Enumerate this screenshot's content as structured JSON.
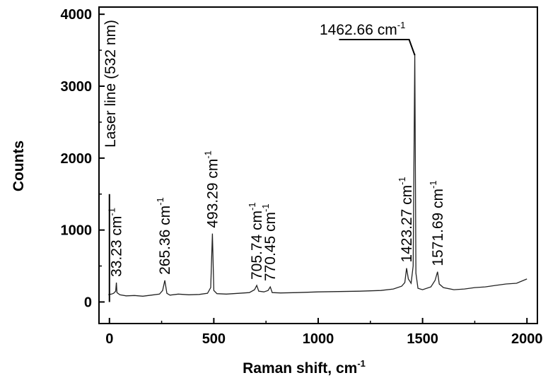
{
  "chart_data": {
    "type": "line",
    "title": "",
    "xlabel": "Raman shift, cm",
    "xlabel_sup": "-1",
    "ylabel": "Counts",
    "xlim": [
      -50,
      2050
    ],
    "ylim": [
      -300,
      4100
    ],
    "x_ticks": [
      0,
      500,
      1000,
      1500,
      2000
    ],
    "x_tick_labels": [
      "0",
      "500",
      "1000",
      "1500",
      "2000"
    ],
    "y_ticks": [
      0,
      1000,
      2000,
      3000,
      4000
    ],
    "y_tick_labels": [
      "0",
      "1000",
      "2000",
      "3000",
      "4000"
    ],
    "grid": false,
    "legend": "none",
    "series": [
      {
        "x": [
          -5,
          0,
          10,
          20,
          30,
          33.23,
          36,
          50,
          80,
          120,
          160,
          200,
          240,
          255,
          265.36,
          275,
          290,
          330,
          380,
          430,
          470,
          485,
          493.29,
          500,
          515,
          560,
          620,
          670,
          695,
          705.74,
          715,
          740,
          760,
          770.45,
          780,
          820,
          900,
          1000,
          1100,
          1200,
          1300,
          1360,
          1400,
          1415,
          1423.27,
          1432,
          1445,
          1455,
          1462.66,
          1468,
          1478,
          1500,
          1540,
          1560,
          1571.69,
          1580,
          1600,
          1650,
          1700,
          1750,
          1800,
          1850,
          1900,
          1950,
          2000
        ],
        "values": [
          100,
          105,
          110,
          120,
          150,
          270,
          130,
          100,
          85,
          90,
          80,
          95,
          110,
          160,
          300,
          120,
          95,
          110,
          100,
          105,
          120,
          200,
          950,
          160,
          115,
          110,
          120,
          130,
          170,
          230,
          150,
          140,
          160,
          210,
          130,
          125,
          130,
          140,
          145,
          150,
          160,
          180,
          220,
          270,
          470,
          320,
          260,
          500,
          3450,
          400,
          190,
          170,
          210,
          300,
          420,
          250,
          200,
          170,
          180,
          200,
          210,
          230,
          250,
          260,
          320
        ]
      }
    ],
    "annotations": [
      {
        "text": "Laser line (532 nm)",
        "x": 0,
        "y": 1500
      },
      {
        "text": "33.23 cm",
        "sup": "-1",
        "x": 33.23,
        "y": 270
      },
      {
        "text": "265.36 cm",
        "sup": "-1",
        "x": 265.36,
        "y": 300
      },
      {
        "text": "493.29 cm",
        "sup": "-1",
        "x": 493.29,
        "y": 950
      },
      {
        "text": "705.74 cm",
        "sup": "-1",
        "x": 705.74,
        "y": 230
      },
      {
        "text": "770.45 cm",
        "sup": "-1",
        "x": 770.45,
        "y": 210
      },
      {
        "text": "1423.27 cm",
        "sup": "-1",
        "x": 1423.27,
        "y": 470
      },
      {
        "text": "1571.69 cm",
        "sup": "-1",
        "x": 1571.69,
        "y": 420
      },
      {
        "text": "1462.66 cm",
        "sup": "-1",
        "x": 1462.66,
        "y": 3450
      }
    ]
  }
}
